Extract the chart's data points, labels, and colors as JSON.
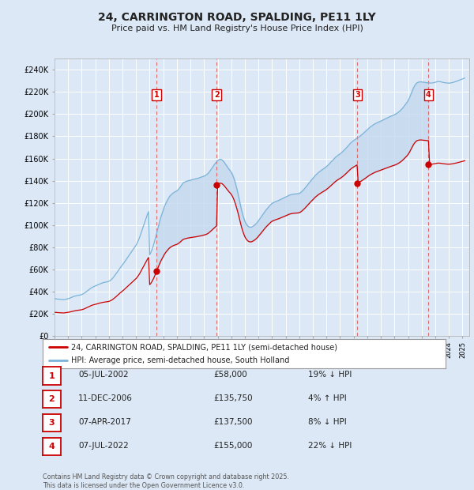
{
  "title": "24, CARRINGTON ROAD, SPALDING, PE11 1LY",
  "subtitle": "Price paid vs. HM Land Registry's House Price Index (HPI)",
  "background_color": "#dce8f5",
  "plot_bg_color": "#dce8f5",
  "grid_color": "#ffffff",
  "hpi_color": "#7ab3d9",
  "price_color": "#cc0000",
  "dashed_line_color": "#e06060",
  "shade_color": "#c5d8ee",
  "xlim_start": 1995.0,
  "xlim_end": 2025.5,
  "ylim": [
    0,
    250000
  ],
  "yticks": [
    0,
    20000,
    40000,
    60000,
    80000,
    100000,
    120000,
    140000,
    160000,
    180000,
    200000,
    220000,
    240000
  ],
  "ytick_labels": [
    "£0",
    "£20K",
    "£40K",
    "£60K",
    "£80K",
    "£100K",
    "£120K",
    "£140K",
    "£160K",
    "£180K",
    "£200K",
    "£220K",
    "£240K"
  ],
  "transactions": [
    {
      "id": 1,
      "date_str": "05-JUL-2002",
      "year": 2002.5,
      "price": 58000,
      "pct": "19%",
      "dir": "↓"
    },
    {
      "id": 2,
      "date_str": "11-DEC-2006",
      "year": 2006.92,
      "price": 135750,
      "pct": "4%",
      "dir": "↑"
    },
    {
      "id": 3,
      "date_str": "07-APR-2017",
      "year": 2017.27,
      "price": 137500,
      "pct": "8%",
      "dir": "↓"
    },
    {
      "id": 4,
      "date_str": "07-JUL-2022",
      "year": 2022.5,
      "price": 155000,
      "pct": "22%",
      "dir": "↓"
    }
  ],
  "legend_entries": [
    {
      "label": "24, CARRINGTON ROAD, SPALDING, PE11 1LY (semi-detached house)",
      "color": "#cc0000"
    },
    {
      "label": "HPI: Average price, semi-detached house, South Holland",
      "color": "#7ab3d9"
    }
  ],
  "footer": "Contains HM Land Registry data © Crown copyright and database right 2025.\nThis data is licensed under the Open Government Licence v3.0.",
  "hpi_monthly": [
    33500,
    33300,
    33100,
    33000,
    32900,
    32800,
    32700,
    32600,
    32500,
    32700,
    32900,
    33100,
    33400,
    33700,
    34100,
    34500,
    35000,
    35400,
    35700,
    36000,
    36200,
    36400,
    36600,
    36700,
    37100,
    37600,
    38200,
    38900,
    39700,
    40500,
    41300,
    42000,
    42800,
    43400,
    44000,
    44400,
    44900,
    45300,
    45800,
    46300,
    46700,
    47100,
    47500,
    47800,
    48100,
    48300,
    48500,
    48700,
    49100,
    49700,
    50500,
    51500,
    52700,
    54000,
    55400,
    56800,
    58300,
    59800,
    61300,
    62600,
    63800,
    65300,
    66800,
    68300,
    69800,
    71300,
    72800,
    74300,
    75800,
    77300,
    78800,
    80200,
    81800,
    83800,
    86000,
    88500,
    91500,
    94500,
    97500,
    100500,
    103500,
    106500,
    109500,
    112000,
    73000,
    75000,
    77500,
    80500,
    84000,
    88000,
    92000,
    96000,
    100000,
    104000,
    107500,
    110500,
    113500,
    116500,
    119000,
    121000,
    123000,
    124800,
    126300,
    127300,
    128300,
    129000,
    129700,
    130200,
    130800,
    131800,
    132800,
    134200,
    135700,
    137200,
    138200,
    138700,
    139200,
    139600,
    139900,
    140100,
    140400,
    140700,
    141000,
    141200,
    141500,
    141700,
    142000,
    142300,
    142600,
    143000,
    143400,
    143700,
    144100,
    144600,
    145200,
    146000,
    147000,
    148400,
    149900,
    151400,
    153000,
    154500,
    155800,
    157000,
    158000,
    158800,
    159200,
    159100,
    158600,
    157500,
    156200,
    154700,
    153200,
    151700,
    150200,
    149000,
    147500,
    145500,
    143000,
    139800,
    136200,
    132200,
    127800,
    123000,
    118000,
    113500,
    109600,
    106200,
    103200,
    101200,
    99700,
    98600,
    98100,
    97900,
    98100,
    98700,
    99400,
    100200,
    101300,
    102400,
    103800,
    105300,
    106700,
    108200,
    109700,
    111200,
    112600,
    113900,
    115100,
    116300,
    117500,
    118600,
    119500,
    120000,
    120500,
    121000,
    121400,
    121800,
    122200,
    122700,
    123200,
    123700,
    124200,
    124700,
    125200,
    125700,
    126200,
    126800,
    127100,
    127400,
    127600,
    127800,
    127900,
    128000,
    128100,
    128200,
    128500,
    129000,
    129900,
    130900,
    132000,
    133200,
    134500,
    135800,
    137100,
    138400,
    139700,
    140900,
    142000,
    143300,
    144500,
    145500,
    146500,
    147400,
    148200,
    149000,
    149700,
    150400,
    151100,
    151800,
    152700,
    153600,
    154600,
    155700,
    156800,
    157900,
    159000,
    160100,
    161100,
    162000,
    162800,
    163500,
    164200,
    165000,
    165900,
    166900,
    167900,
    169000,
    170100,
    171300,
    172500,
    173600,
    174600,
    175500,
    176200,
    177000,
    177700,
    178300,
    179000,
    179700,
    180500,
    181300,
    182200,
    183100,
    184000,
    185000,
    186000,
    187000,
    187900,
    188700,
    189400,
    190100,
    190800,
    191400,
    191900,
    192400,
    192900,
    193300,
    193800,
    194300,
    194800,
    195300,
    195800,
    196300,
    196800,
    197300,
    197800,
    198300,
    198700,
    199100,
    199600,
    200100,
    200700,
    201400,
    202200,
    203100,
    204100,
    205200,
    206500,
    207800,
    209200,
    210600,
    212200,
    214200,
    216800,
    219300,
    221800,
    224200,
    226000,
    227500,
    228400,
    228800,
    229100,
    229200,
    229100,
    229000,
    228800,
    228700,
    228500,
    228400,
    228300,
    228200,
    228100,
    228100,
    228300,
    228500,
    228800,
    229100,
    229400,
    229500,
    229400,
    229200,
    228900,
    228700,
    228500,
    228300,
    228200,
    228100,
    228000,
    228100,
    228300,
    228500,
    228800,
    229100,
    229400,
    229800,
    230200,
    230600,
    231000,
    231400,
    231800,
    232200,
    232600
  ]
}
